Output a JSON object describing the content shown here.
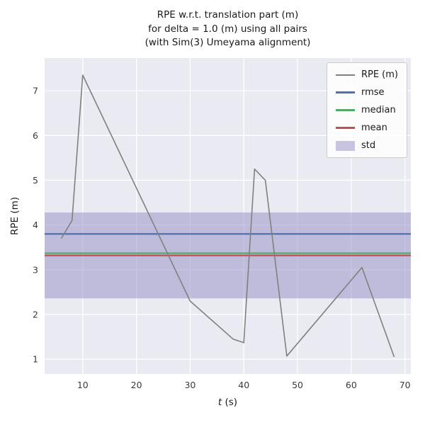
{
  "chart_data": {
    "type": "line",
    "title_lines": [
      "RPE w.r.t. translation part (m)",
      "for delta = 1.0 (m) using all pairs",
      "(with Sim(3) Umeyama alignment)"
    ],
    "xlabel": {
      "var": "t",
      "unit": " (s)"
    },
    "ylabel": "RPE (m)",
    "xlim": [
      2.9,
      71.1
    ],
    "ylim": [
      0.67,
      7.73
    ],
    "xticks": [
      10,
      20,
      30,
      40,
      50,
      60,
      70
    ],
    "yticks": [
      1,
      2,
      3,
      4,
      5,
      6,
      7
    ],
    "grid": true,
    "legend_position": "upper right",
    "series": [
      {
        "name": "RPE (m)",
        "x": [
          6,
          8,
          10,
          30,
          38,
          40,
          42,
          44,
          48,
          62,
          68
        ],
        "y": [
          3.7,
          4.1,
          7.35,
          2.3,
          1.45,
          1.37,
          5.25,
          5.0,
          1.07,
          3.05,
          1.05
        ]
      }
    ],
    "stats": {
      "rmse": 3.8,
      "median": 3.37,
      "mean": 3.32,
      "std": 0.96
    },
    "legend": [
      {
        "label": "RPE (m)",
        "type": "line",
        "color_key": "rpe"
      },
      {
        "label": "rmse",
        "type": "line",
        "color_key": "rmse"
      },
      {
        "label": "median",
        "type": "line",
        "color_key": "median"
      },
      {
        "label": "mean",
        "type": "line",
        "color_key": "mean"
      },
      {
        "label": "std",
        "type": "patch",
        "color_key": "std"
      }
    ]
  },
  "colors": {
    "rpe": "#808080",
    "rmse": "#4c72b0",
    "median": "#55a868",
    "mean": "#c44e52",
    "std": "#9b95c9",
    "plot_bg": "#eaeaf2",
    "grid": "#ffffff",
    "text": "#3a3a3a"
  }
}
